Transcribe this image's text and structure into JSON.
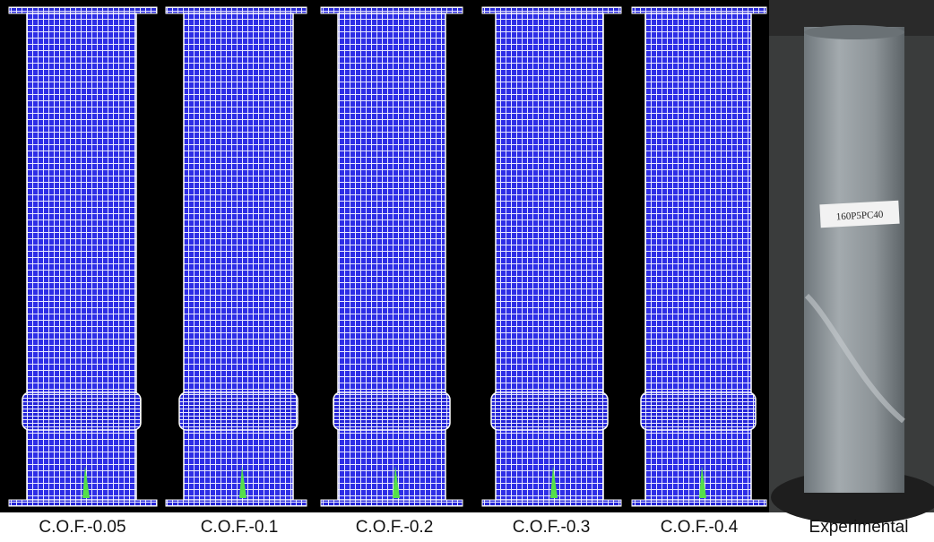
{
  "captions": [
    "C.O.F.-0.05",
    "C.O.F.-0.1",
    "C.O.F.-0.2",
    "C.O.F.-0.3",
    "C.O.F.-0.4",
    "Experimental"
  ],
  "photo_tag": "160P5PC40"
}
